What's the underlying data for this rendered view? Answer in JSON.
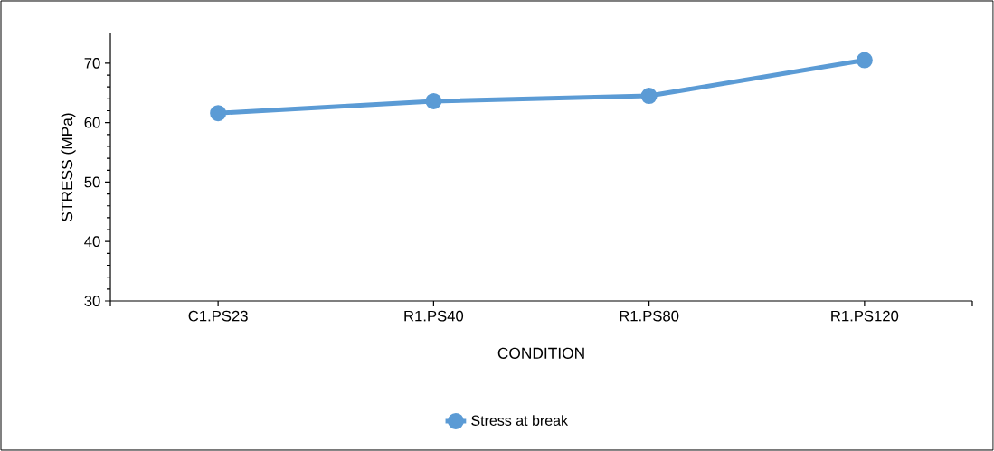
{
  "chart_data": {
    "type": "line",
    "xlabel": "CONDITION",
    "ylabel": "STRESS (MPa)",
    "categories": [
      "C1.PS23",
      "R1.PS40",
      "R1.PS80",
      "R1.PS120"
    ],
    "series": [
      {
        "name": "Stress at break",
        "color": "#5b9bd5",
        "values": [
          61.6,
          63.6,
          64.5,
          70.5
        ]
      }
    ],
    "ylim": [
      30,
      75
    ],
    "yticks": [
      30,
      40,
      50,
      60,
      70
    ],
    "legend": "bottom",
    "marker": "circle",
    "line_style": "solid",
    "grid": false
  }
}
